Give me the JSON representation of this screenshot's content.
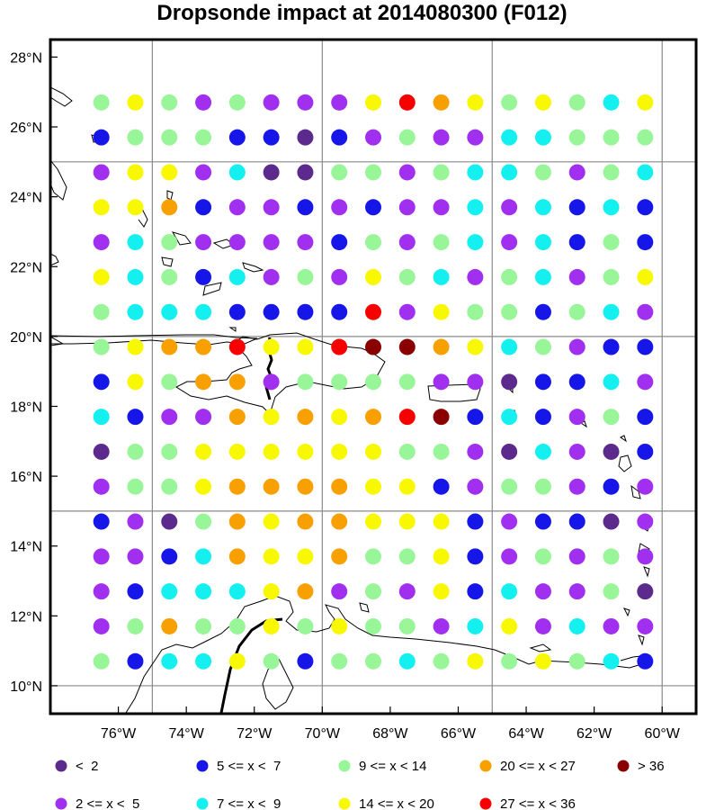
{
  "title": "Dropsonde impact at 2014080300 (F012)",
  "map": {
    "lon_range": [
      -78.0,
      -59.0
    ],
    "lat_range": [
      9.2,
      28.5
    ],
    "grid_lons": [
      -75,
      -70,
      -65,
      -60
    ],
    "grid_lats": [
      10,
      15,
      20,
      25
    ],
    "x_ticks": [
      {
        "lon": -76,
        "label": "76°W"
      },
      {
        "lon": -74,
        "label": "74°W"
      },
      {
        "lon": -72,
        "label": "72°W"
      },
      {
        "lon": -70,
        "label": "70°W"
      },
      {
        "lon": -68,
        "label": "68°W"
      },
      {
        "lon": -66,
        "label": "66°W"
      },
      {
        "lon": -64,
        "label": "64°W"
      },
      {
        "lon": -62,
        "label": "62°W"
      },
      {
        "lon": -60,
        "label": "60°W"
      }
    ],
    "y_ticks": [
      {
        "lat": 10,
        "label": "10°N"
      },
      {
        "lat": 12,
        "label": "12°N"
      },
      {
        "lat": 14,
        "label": "14°N"
      },
      {
        "lat": 16,
        "label": "16°N"
      },
      {
        "lat": 18,
        "label": "18°N"
      },
      {
        "lat": 20,
        "label": "20°N"
      },
      {
        "lat": 22,
        "label": "22°N"
      },
      {
        "lat": 24,
        "label": "24°N"
      },
      {
        "lat": 26,
        "label": "26°N"
      },
      {
        "lat": 28,
        "label": "28°N"
      }
    ]
  },
  "categories": [
    {
      "label": "<  2",
      "color": "#5b2a8c"
    },
    {
      "label": "2 <= x <  5",
      "color": "#a02ff0"
    },
    {
      "label": "5 <= x <  7",
      "color": "#1616e8"
    },
    {
      "label": "7 <= x <  9",
      "color": "#14f0f0"
    },
    {
      "label": "9 <= x < 14",
      "color": "#98f598"
    },
    {
      "label": "14 <= x < 20",
      "color": "#f8f800"
    },
    {
      "label": "20 <= x < 27",
      "color": "#f8a000"
    },
    {
      "label": "27 <= x < 36",
      "color": "#f80000"
    },
    {
      "label": "> 36",
      "color": "#8a0000"
    }
  ],
  "legend_order": [
    0,
    2,
    4,
    6,
    8,
    1,
    3,
    5,
    7
  ],
  "chart_data": {
    "type": "scatter",
    "title": "Dropsonde impact at 2014080300 (F012)",
    "lons": [
      -76.5,
      -75.5,
      -74.5,
      -73.5,
      -72.5,
      -71.5,
      -70.5,
      -69.5,
      -68.5,
      -67.5,
      -66.5,
      -65.5,
      -64.5,
      -63.5,
      -62.5,
      -61.5,
      -60.5
    ],
    "lats": [
      26.7,
      25.7,
      24.7,
      23.7,
      22.7,
      21.7,
      20.7,
      19.7,
      18.7,
      17.7,
      16.7,
      15.7,
      14.7,
      13.7,
      12.7,
      11.7,
      10.7
    ],
    "category_grid": [
      "45414111576545435",
      "24442202141133444",
      "15513004414334143",
      "55621121211313232",
      "13411112414313242",
      "53423141543143145",
      "43332222715442431",
      "45667557886534122",
      "25466144441102231",
      "32116565678232142",
      "04455555544103102",
      "14456666552144121",
      "21046566555212201",
      "11236556445214141",
      "12333561415231140",
      "14644545441351311",
      "42335424434545432"
    ]
  },
  "basemap": {
    "outline_color": "#000000",
    "border_color": "#000000"
  }
}
